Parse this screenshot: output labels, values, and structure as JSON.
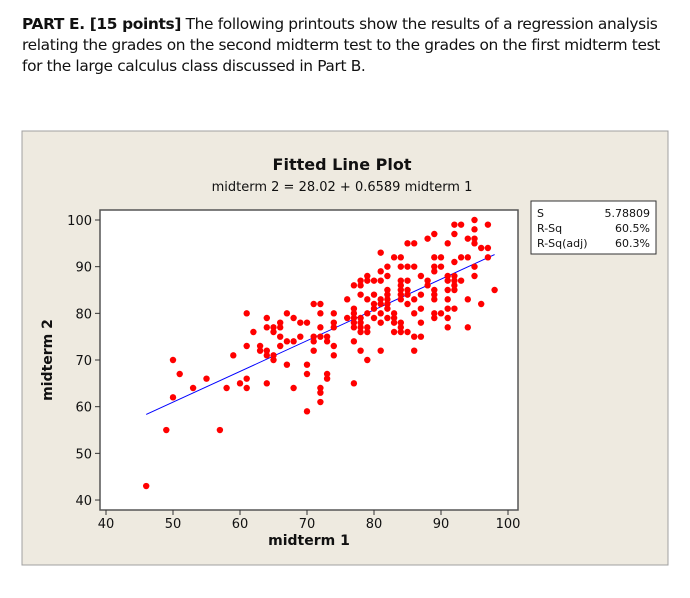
{
  "intro": {
    "lead": "PART E. [15 points]",
    "text": " The following printouts show the results of a regression analysis relating the grades on the second midterm test to the grades on the first midterm test for the large calculus class discussed in Part B."
  },
  "chart_data": {
    "type": "scatter",
    "title": "Fitted Line Plot",
    "subtitle": "midterm 2 =  28.02 + 0.6589 midterm 1",
    "xlabel": "midterm 1",
    "ylabel": "midterm 2",
    "xlim": [
      39,
      101
    ],
    "ylim": [
      38.5,
      102
    ],
    "xticks": [
      40,
      50,
      60,
      70,
      80,
      90,
      100
    ],
    "yticks": [
      40,
      50,
      60,
      70,
      80,
      90,
      100
    ],
    "grid": false,
    "colors": {
      "points": "#ff0000",
      "fit_line": "#0000ff",
      "background": "#eeeae0"
    },
    "fit": {
      "intercept": 28.02,
      "slope": 0.6589,
      "x_range": [
        46,
        98
      ]
    },
    "stats": [
      {
        "label": "S",
        "value": "5.78809"
      },
      {
        "label": "R-Sq",
        "value": "60.5%"
      },
      {
        "label": "R-Sq(adj)",
        "value": "60.3%"
      }
    ],
    "points": [
      [
        46,
        43
      ],
      [
        49,
        55
      ],
      [
        50,
        62
      ],
      [
        50,
        70
      ],
      [
        51,
        67
      ],
      [
        53,
        64
      ],
      [
        55,
        66
      ],
      [
        57,
        55
      ],
      [
        58,
        64
      ],
      [
        59,
        71
      ],
      [
        60,
        65
      ],
      [
        61,
        66
      ],
      [
        61,
        64
      ],
      [
        61,
        73
      ],
      [
        61,
        80
      ],
      [
        62,
        76
      ],
      [
        63,
        73
      ],
      [
        63,
        72
      ],
      [
        64,
        79
      ],
      [
        64,
        77
      ],
      [
        64,
        72
      ],
      [
        64,
        71
      ],
      [
        64,
        65
      ],
      [
        65,
        77
      ],
      [
        65,
        76
      ],
      [
        65,
        71
      ],
      [
        65,
        70
      ],
      [
        66,
        78
      ],
      [
        66,
        77
      ],
      [
        66,
        75
      ],
      [
        66,
        73
      ],
      [
        67,
        80
      ],
      [
        67,
        74
      ],
      [
        67,
        69
      ],
      [
        68,
        79
      ],
      [
        68,
        74
      ],
      [
        68,
        64
      ],
      [
        69,
        78
      ],
      [
        69,
        75
      ],
      [
        70,
        78
      ],
      [
        70,
        69
      ],
      [
        70,
        67
      ],
      [
        70,
        59
      ],
      [
        71,
        82
      ],
      [
        71,
        75
      ],
      [
        71,
        74
      ],
      [
        71,
        72
      ],
      [
        72,
        82
      ],
      [
        72,
        80
      ],
      [
        72,
        77
      ],
      [
        72,
        75
      ],
      [
        72,
        64
      ],
      [
        72,
        63
      ],
      [
        72,
        61
      ],
      [
        73,
        75
      ],
      [
        73,
        74
      ],
      [
        73,
        67
      ],
      [
        73,
        66
      ],
      [
        74,
        80
      ],
      [
        74,
        78
      ],
      [
        74,
        77
      ],
      [
        74,
        73
      ],
      [
        74,
        71
      ],
      [
        76,
        83
      ],
      [
        76,
        79
      ],
      [
        77,
        86
      ],
      [
        77,
        81
      ],
      [
        77,
        80
      ],
      [
        77,
        79
      ],
      [
        77,
        78
      ],
      [
        77,
        77
      ],
      [
        77,
        74
      ],
      [
        77,
        65
      ],
      [
        78,
        87
      ],
      [
        78,
        86
      ],
      [
        78,
        84
      ],
      [
        78,
        79
      ],
      [
        78,
        78
      ],
      [
        78,
        77
      ],
      [
        78,
        76
      ],
      [
        78,
        72
      ],
      [
        79,
        88
      ],
      [
        79,
        87
      ],
      [
        79,
        83
      ],
      [
        79,
        80
      ],
      [
        79,
        77
      ],
      [
        79,
        76
      ],
      [
        79,
        70
      ],
      [
        80,
        87
      ],
      [
        80,
        84
      ],
      [
        80,
        82
      ],
      [
        80,
        81
      ],
      [
        80,
        79
      ],
      [
        81,
        93
      ],
      [
        81,
        89
      ],
      [
        81,
        87
      ],
      [
        81,
        83
      ],
      [
        81,
        82
      ],
      [
        81,
        80
      ],
      [
        81,
        78
      ],
      [
        81,
        72
      ],
      [
        82,
        90
      ],
      [
        82,
        88
      ],
      [
        82,
        85
      ],
      [
        82,
        84
      ],
      [
        82,
        83
      ],
      [
        82,
        82
      ],
      [
        82,
        81
      ],
      [
        82,
        79
      ],
      [
        83,
        92
      ],
      [
        83,
        80
      ],
      [
        83,
        79
      ],
      [
        83,
        78
      ],
      [
        83,
        76
      ],
      [
        84,
        92
      ],
      [
        84,
        90
      ],
      [
        84,
        87
      ],
      [
        84,
        86
      ],
      [
        84,
        85
      ],
      [
        84,
        84
      ],
      [
        84,
        83
      ],
      [
        84,
        78
      ],
      [
        84,
        77
      ],
      [
        84,
        76
      ],
      [
        85,
        95
      ],
      [
        85,
        90
      ],
      [
        85,
        87
      ],
      [
        85,
        85
      ],
      [
        85,
        84
      ],
      [
        85,
        82
      ],
      [
        85,
        76
      ],
      [
        86,
        95
      ],
      [
        86,
        90
      ],
      [
        86,
        83
      ],
      [
        86,
        80
      ],
      [
        86,
        75
      ],
      [
        86,
        72
      ],
      [
        87,
        88
      ],
      [
        87,
        84
      ],
      [
        87,
        81
      ],
      [
        87,
        78
      ],
      [
        87,
        75
      ],
      [
        88,
        96
      ],
      [
        88,
        87
      ],
      [
        88,
        86
      ],
      [
        89,
        97
      ],
      [
        89,
        92
      ],
      [
        89,
        90
      ],
      [
        89,
        89
      ],
      [
        89,
        85
      ],
      [
        89,
        84
      ],
      [
        89,
        83
      ],
      [
        89,
        80
      ],
      [
        89,
        79
      ],
      [
        90,
        92
      ],
      [
        90,
        90
      ],
      [
        90,
        80
      ],
      [
        91,
        95
      ],
      [
        91,
        88
      ],
      [
        91,
        87
      ],
      [
        91,
        85
      ],
      [
        91,
        83
      ],
      [
        91,
        81
      ],
      [
        91,
        79
      ],
      [
        91,
        77
      ],
      [
        92,
        99
      ],
      [
        92,
        97
      ],
      [
        92,
        91
      ],
      [
        92,
        88
      ],
      [
        92,
        87
      ],
      [
        92,
        86
      ],
      [
        92,
        85
      ],
      [
        92,
        81
      ],
      [
        93,
        99
      ],
      [
        93,
        92
      ],
      [
        93,
        87
      ],
      [
        94,
        96
      ],
      [
        94,
        92
      ],
      [
        94,
        83
      ],
      [
        94,
        77
      ],
      [
        95,
        100
      ],
      [
        95,
        98
      ],
      [
        95,
        96
      ],
      [
        95,
        95
      ],
      [
        95,
        90
      ],
      [
        95,
        88
      ],
      [
        96,
        94
      ],
      [
        96,
        82
      ],
      [
        97,
        99
      ],
      [
        97,
        94
      ],
      [
        97,
        92
      ],
      [
        98,
        85
      ]
    ]
  }
}
